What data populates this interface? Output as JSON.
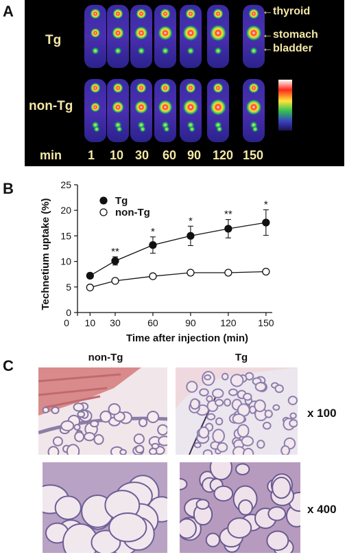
{
  "panels": {
    "a": "A",
    "b": "B",
    "c": "C"
  },
  "panelA": {
    "row_labels": [
      "Tg",
      "non-Tg"
    ],
    "time_label": "min",
    "times": [
      "1",
      "10",
      "30",
      "60",
      "90",
      "120",
      "150"
    ],
    "organs": [
      "thyroid",
      "stomach",
      "bladder"
    ],
    "colors": {
      "background": "#000000",
      "text": "#f4e8a6"
    }
  },
  "panelC": {
    "columns": [
      "non-Tg",
      "Tg"
    ],
    "magnifications": [
      "x 100",
      "x 400"
    ]
  },
  "chart_data": {
    "type": "line",
    "xlabel": "Time after injection (min)",
    "ylabel": "Technetium uptake (%)",
    "xlim": [
      0,
      155
    ],
    "ylim": [
      0,
      25
    ],
    "x_ticks": [
      "0",
      "10",
      "30",
      "60",
      "90",
      "120",
      "150"
    ],
    "y_ticks": [
      "0",
      "5",
      "10",
      "15",
      "20",
      "25"
    ],
    "legend_position": "top-left",
    "grid": false,
    "x": [
      10,
      30,
      60,
      90,
      120,
      150
    ],
    "series": [
      {
        "name": "Tg",
        "marker": "filled-circle",
        "values": [
          7.2,
          10.1,
          13.2,
          15.0,
          16.4,
          17.6
        ],
        "errors": [
          0.5,
          0.8,
          1.6,
          1.9,
          1.8,
          2.5
        ],
        "significance": [
          "",
          "**",
          "*",
          "*",
          "**",
          "*"
        ]
      },
      {
        "name": "non-Tg",
        "marker": "open-circle",
        "values": [
          4.9,
          6.2,
          7.1,
          7.8,
          7.8,
          8.0
        ],
        "errors": [
          0.2,
          0.2,
          0.2,
          0.2,
          0.2,
          0.2
        ],
        "significance": [
          "",
          "",
          "",
          "",
          "",
          ""
        ]
      }
    ]
  }
}
